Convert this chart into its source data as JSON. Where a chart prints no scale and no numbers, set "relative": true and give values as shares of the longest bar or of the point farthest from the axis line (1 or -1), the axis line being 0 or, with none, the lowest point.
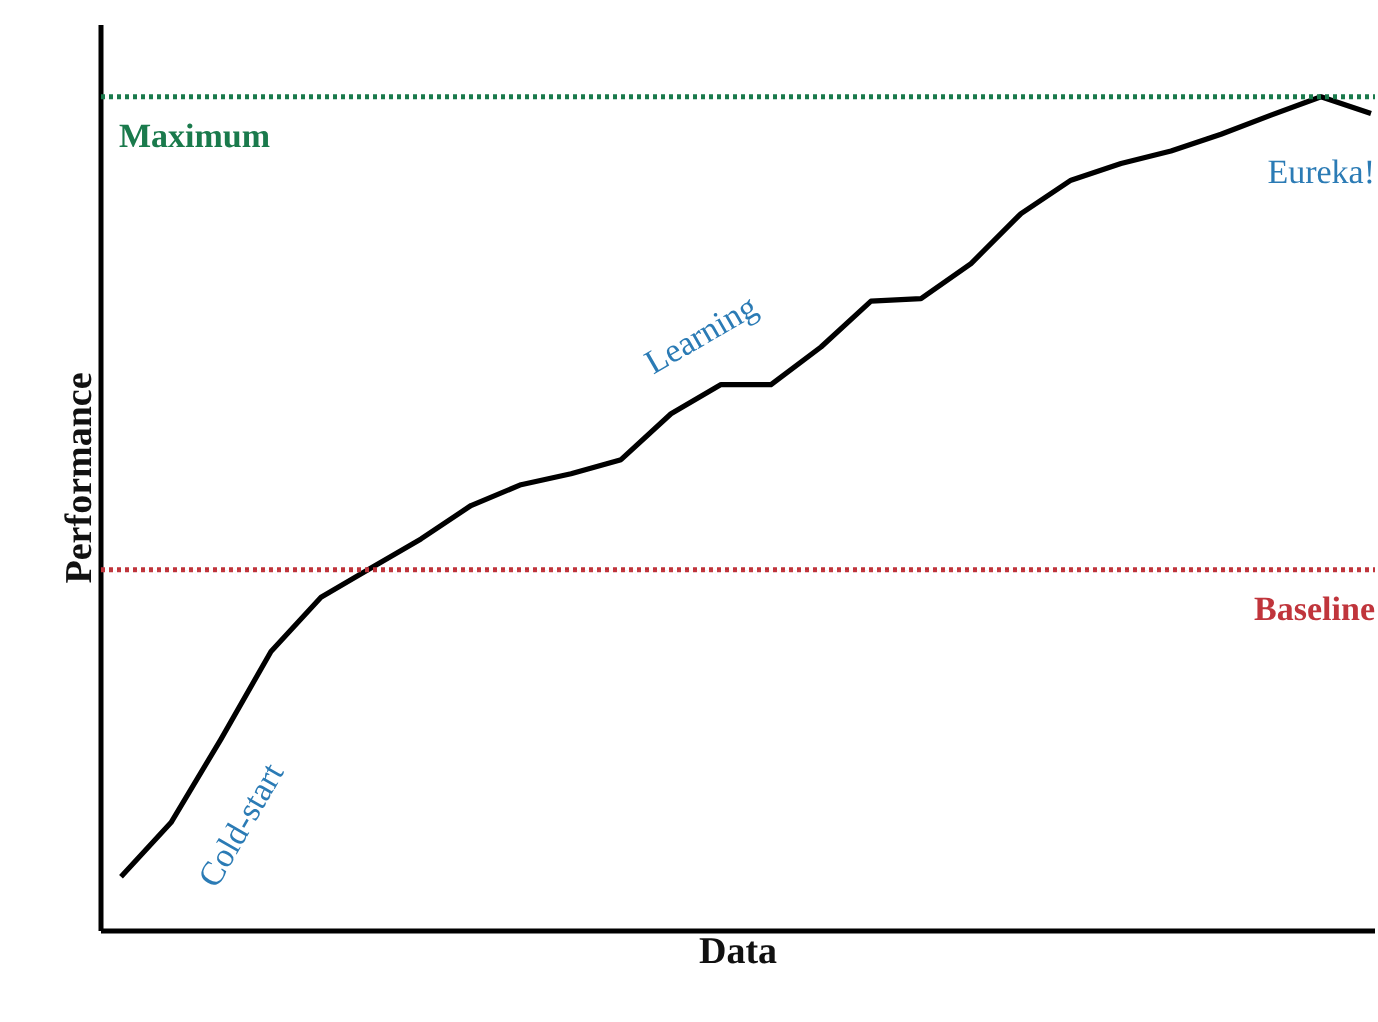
{
  "chart_data": {
    "type": "line",
    "relative": true,
    "xlabel": "Data",
    "ylabel": "Performance",
    "categories": [
      null,
      null,
      null,
      null,
      null,
      null,
      null,
      null,
      null,
      null,
      null,
      null,
      null,
      null,
      null,
      null,
      null,
      null,
      null,
      null,
      null,
      null,
      null,
      null,
      null,
      null
    ],
    "series": [
      {
        "color": "#000000",
        "values": [
          0.065,
          0.13,
          0.23,
          0.335,
          0.4,
          0.435,
          0.47,
          0.51,
          0.535,
          0.548,
          0.565,
          0.62,
          0.655,
          0.655,
          0.7,
          0.755,
          0.758,
          0.8,
          0.86,
          0.9,
          0.92,
          0.935,
          0.955,
          0.978,
          1.0,
          0.98
        ]
      }
    ],
    "ref_lines": [
      {
        "axis": "y",
        "value": 1.0,
        "label": "Maximum",
        "color": "#1a7a4c",
        "line_style": "dotted"
      },
      {
        "axis": "y",
        "value": 0.433,
        "label": "Baseline",
        "color": "#c0353c",
        "line_style": "dotted"
      }
    ],
    "annotations": [
      "Cold-start",
      "Learning",
      "Eureka!"
    ],
    "line_style": "solid",
    "marker": "none"
  }
}
